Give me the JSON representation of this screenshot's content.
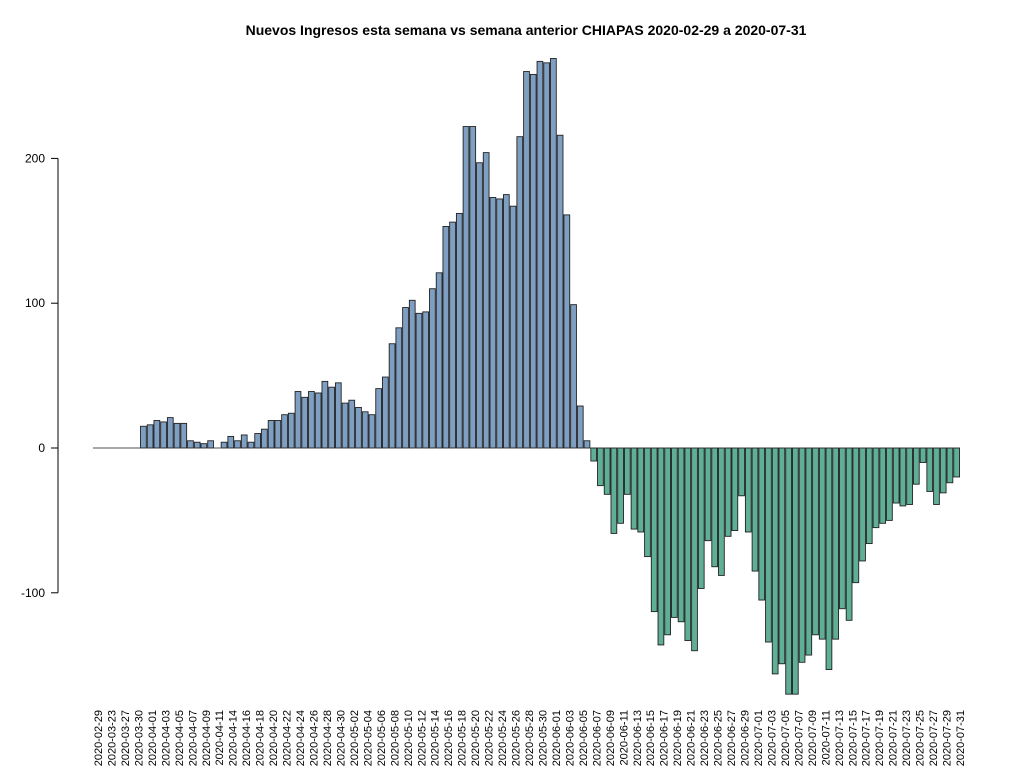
{
  "chart_data": {
    "type": "bar",
    "title": "Nuevos Ingresos esta semana vs semana anterior CHIAPAS 2020-02-29 a 2020-07-31",
    "xlabel": "",
    "ylabel": "",
    "ylim": [
      -170,
      270
    ],
    "yticks": [
      -100,
      0,
      100,
      200
    ],
    "grid": false,
    "colors": {
      "positive": "#7f9fc2",
      "negative": "#5fae96",
      "outline": "#222222"
    },
    "x_tick_labels": [
      "2020-02-29",
      "2020-03-23",
      "2020-03-27",
      "2020-03-30",
      "2020-04-01",
      "2020-04-03",
      "2020-04-05",
      "2020-04-07",
      "2020-04-09",
      "2020-04-11",
      "2020-04-14",
      "2020-04-16",
      "2020-04-18",
      "2020-04-20",
      "2020-04-22",
      "2020-04-24",
      "2020-04-26",
      "2020-04-28",
      "2020-04-30",
      "2020-05-02",
      "2020-05-04",
      "2020-05-06",
      "2020-05-08",
      "2020-05-10",
      "2020-05-12",
      "2020-05-14",
      "2020-05-16",
      "2020-05-18",
      "2020-05-20",
      "2020-05-22",
      "2020-05-24",
      "2020-05-26",
      "2020-05-28",
      "2020-05-30",
      "2020-06-01",
      "2020-06-03",
      "2020-06-05",
      "2020-06-07",
      "2020-06-09",
      "2020-06-11",
      "2020-06-13",
      "2020-06-15",
      "2020-06-17",
      "2020-06-19",
      "2020-06-21",
      "2020-06-23",
      "2020-06-25",
      "2020-06-27",
      "2020-06-29",
      "2020-07-01",
      "2020-07-03",
      "2020-07-05",
      "2020-07-07",
      "2020-07-09",
      "2020-07-11",
      "2020-07-13",
      "2020-07-15",
      "2020-07-17",
      "2020-07-19",
      "2020-07-21",
      "2020-07-23",
      "2020-07-25",
      "2020-07-27",
      "2020-07-29",
      "2020-07-31"
    ],
    "values": [
      0,
      0,
      0,
      0,
      0,
      0,
      0,
      15,
      16,
      19,
      18,
      21,
      17,
      17,
      5,
      4,
      3,
      5,
      0,
      4,
      8,
      5,
      9,
      4,
      10,
      13,
      19,
      19,
      23,
      24,
      39,
      35,
      39,
      38,
      46,
      42,
      45,
      31,
      33,
      28,
      25,
      23,
      41,
      49,
      72,
      83,
      97,
      102,
      93,
      94,
      110,
      121,
      153,
      156,
      162,
      222,
      222,
      197,
      204,
      173,
      172,
      175,
      167,
      215,
      260,
      258,
      267,
      266,
      269,
      216,
      161,
      99,
      29,
      5,
      -9,
      -26,
      -32,
      -59,
      -52,
      -32,
      -56,
      -58,
      -75,
      -113,
      -136,
      -129,
      -117,
      -120,
      -133,
      -140,
      -97,
      -64,
      -82,
      -88,
      -61,
      -57,
      -33,
      -58,
      -85,
      -105,
      -134,
      -156,
      -149,
      -170,
      -170,
      -148,
      -143,
      -129,
      -132,
      -153,
      -132,
      -111,
      -119,
      -93,
      -78,
      -66,
      -55,
      -52,
      -50,
      -38,
      -40,
      -39,
      -25,
      -10,
      -30,
      -39,
      -31,
      -24,
      -20
    ]
  }
}
